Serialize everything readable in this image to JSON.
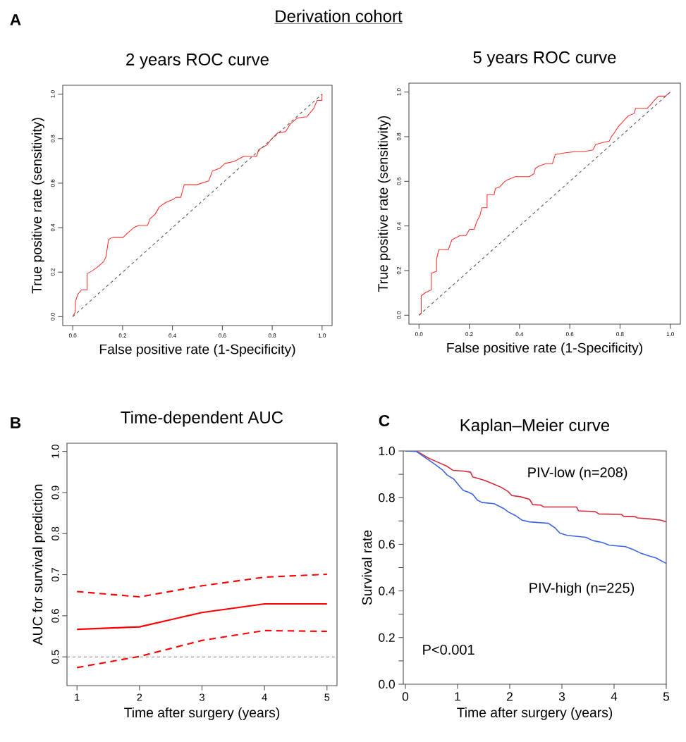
{
  "chart_data": [
    {
      "type": "line",
      "title": "2 years ROC curve",
      "xlabel": "False positive rate (1-Specificity)",
      "ylabel": "True positive rate (sensitivity)",
      "annotations": [
        "A",
        "Derivation cohort"
      ],
      "xlim": [
        -0.04,
        1.04
      ],
      "ylim": [
        -0.04,
        1.04
      ],
      "xticks": [
        {
          "value": 0,
          "label": "0.0"
        },
        {
          "value": 0.2,
          "label": "0.2"
        },
        {
          "value": 0.4,
          "label": "0.4"
        },
        {
          "value": 0.6,
          "label": "0.6"
        },
        {
          "value": 0.8,
          "label": "0.8"
        },
        {
          "value": 1,
          "label": "1.0"
        }
      ],
      "yticks": [
        {
          "value": 0,
          "label": "0.0"
        },
        {
          "value": 0.2,
          "label": "0.2"
        },
        {
          "value": 0.4,
          "label": "0.4"
        },
        {
          "value": 0.6,
          "label": "0.6"
        },
        {
          "value": 0.8,
          "label": "0.8"
        },
        {
          "value": 1,
          "label": "1.0"
        }
      ],
      "series": [
        {
          "color": "#ff3030",
          "x": [
            0,
            0.01,
            0.011,
            0.02,
            0.035,
            0.058,
            0.058,
            0.077,
            0.096,
            0.124,
            0.133,
            0.144,
            0.161,
            0.203,
            0.217,
            0.245,
            0.264,
            0.3,
            0.31,
            0.33,
            0.348,
            0.376,
            0.4,
            0.414,
            0.433,
            0.447,
            0.498,
            0.545,
            0.56,
            0.59,
            0.61,
            0.648,
            0.685,
            0.737,
            0.746,
            0.779,
            0.793,
            0.821,
            0.854,
            0.873,
            0.901,
            0.938,
            0.966,
            0.98,
            0.999,
            1
          ],
          "values": [
            0,
            0.02,
            0.068,
            0.1,
            0.12,
            0.12,
            0.194,
            0.205,
            0.22,
            0.247,
            0.268,
            0.347,
            0.357,
            0.357,
            0.373,
            0.4,
            0.41,
            0.41,
            0.44,
            0.46,
            0.494,
            0.515,
            0.525,
            0.536,
            0.536,
            0.593,
            0.593,
            0.61,
            0.654,
            0.667,
            0.688,
            0.698,
            0.72,
            0.72,
            0.751,
            0.772,
            0.793,
            0.825,
            0.832,
            0.867,
            0.893,
            0.898,
            0.935,
            0.972,
            0.972,
            1
          ]
        },
        {
          "color": "#555555",
          "line_style": "dashed",
          "x": [
            0,
            1
          ],
          "values": [
            0,
            1
          ]
        }
      ]
    },
    {
      "type": "line",
      "title": "5 years ROC curve",
      "xlabel": "False positive rate (1-Specificity)",
      "ylabel": "True positive rate (sensitivity)",
      "xlim": [
        -0.04,
        1.04
      ],
      "ylim": [
        -0.04,
        1.04
      ],
      "xticks": [
        {
          "value": 0,
          "label": "0.0"
        },
        {
          "value": 0.2,
          "label": "0.2"
        },
        {
          "value": 0.4,
          "label": "0.4"
        },
        {
          "value": 0.6,
          "label": "0.6"
        },
        {
          "value": 0.8,
          "label": "0.8"
        },
        {
          "value": 1,
          "label": "1.0"
        }
      ],
      "yticks": [
        {
          "value": 0,
          "label": "0.0"
        },
        {
          "value": 0.2,
          "label": "0.2"
        },
        {
          "value": 0.4,
          "label": "0.4"
        },
        {
          "value": 0.6,
          "label": "0.6"
        },
        {
          "value": 0.8,
          "label": "0.8"
        },
        {
          "value": 1,
          "label": "1.0"
        }
      ],
      "series": [
        {
          "color": "#ff3030",
          "x": [
            0,
            0.009,
            0.009,
            0.028,
            0.049,
            0.049,
            0.07,
            0.07,
            0.079,
            0.117,
            0.131,
            0.15,
            0.164,
            0.187,
            0.201,
            0.22,
            0.229,
            0.243,
            0.25,
            0.271,
            0.271,
            0.299,
            0.304,
            0.322,
            0.341,
            0.355,
            0.383,
            0.439,
            0.458,
            0.463,
            0.477,
            0.505,
            0.531,
            0.542,
            0.584,
            0.621,
            0.654,
            0.692,
            0.703,
            0.729,
            0.757,
            0.766,
            0.776,
            0.792,
            0.811,
            0.832,
            0.855,
            0.862,
            0.908,
            0.925,
            0.935,
            0.953,
            0.981,
            1
          ],
          "values": [
            0,
            0.008,
            0.087,
            0.103,
            0.113,
            0.188,
            0.197,
            0.252,
            0.294,
            0.294,
            0.338,
            0.349,
            0.357,
            0.357,
            0.385,
            0.385,
            0.417,
            0.448,
            0.482,
            0.482,
            0.54,
            0.54,
            0.568,
            0.576,
            0.599,
            0.608,
            0.621,
            0.621,
            0.634,
            0.658,
            0.668,
            0.679,
            0.679,
            0.72,
            0.728,
            0.733,
            0.733,
            0.741,
            0.765,
            0.773,
            0.78,
            0.801,
            0.815,
            0.844,
            0.867,
            0.893,
            0.903,
            0.927,
            0.927,
            0.947,
            0.961,
            0.982,
            0.982,
            1
          ]
        },
        {
          "color": "#555555",
          "line_style": "dashed",
          "x": [
            0,
            1
          ],
          "values": [
            0,
            1
          ]
        }
      ]
    },
    {
      "type": "line",
      "title": "Time-dependent AUC",
      "xlabel": "Time after surgery (years)",
      "ylabel": "AUC for survival prediction",
      "annotations": [
        "B"
      ],
      "xlim": [
        0.84,
        5.16
      ],
      "ylim": [
        0.43,
        1.02
      ],
      "xticks": [
        1,
        2,
        3,
        4,
        5
      ],
      "yticks": [
        0.5,
        0.6,
        0.7,
        0.8,
        0.9,
        {
          "value": 1,
          "label": "1.0"
        }
      ],
      "ref_lines": [
        {
          "axis": "y",
          "value": 0.5,
          "color": "#555555",
          "line_style": "dashed"
        }
      ],
      "series": [
        {
          "color": "#ff0000",
          "x": [
            1,
            2,
            3,
            4,
            5
          ],
          "values": [
            0.567,
            0.573,
            0.608,
            0.629,
            0.629
          ]
        },
        {
          "color": "#ff0000",
          "line_style": "dashed",
          "x": [
            1,
            2,
            3,
            4,
            5
          ],
          "values": [
            0.659,
            0.646,
            0.673,
            0.694,
            0.701
          ]
        },
        {
          "color": "#ff0000",
          "line_style": "dashed",
          "x": [
            1,
            2,
            3,
            4,
            5
          ],
          "values": [
            0.474,
            0.501,
            0.54,
            0.564,
            0.562
          ]
        }
      ]
    },
    {
      "type": "line",
      "title": "Kaplan–Meier curve",
      "xlabel": "Time after surgery (years)",
      "ylabel": "Survival rate",
      "annotations": [
        "C",
        "P<0.001"
      ],
      "xlim": [
        -0.04,
        5
      ],
      "ylim": [
        0,
        1
      ],
      "xticks": [
        0,
        1,
        2,
        3,
        4,
        5
      ],
      "yticks": [
        {
          "value": 0,
          "label": "0.0"
        },
        {
          "value": 0.1,
          "label": null
        },
        {
          "value": 0.2,
          "label": "0.2"
        },
        {
          "value": 0.3,
          "label": null
        },
        {
          "value": 0.4,
          "label": "0.4"
        },
        {
          "value": 0.5,
          "label": null
        },
        {
          "value": 0.6,
          "label": "0.6"
        },
        {
          "value": 0.7,
          "label": null
        },
        {
          "value": 0.8,
          "label": "0.8"
        },
        {
          "value": 0.9,
          "label": null
        },
        {
          "value": 1,
          "label": "1.0"
        }
      ],
      "series": [
        {
          "name": "PIV-low (n=208)",
          "color": "#d42a3c",
          "x": [
            0,
            0.21,
            0.44,
            0.62,
            0.8,
            0.91,
            1.11,
            1.25,
            1.29,
            1.52,
            1.7,
            1.84,
            1.97,
            2.04,
            2.2,
            2.38,
            2.44,
            2.6,
            2.65,
            3.28,
            3.32,
            3.64,
            3.71,
            4.14,
            4.18,
            4.41,
            4.45,
            4.72,
            4.9,
            5
          ],
          "values": [
            1,
            1,
            0.97,
            0.952,
            0.934,
            0.917,
            0.914,
            0.909,
            0.889,
            0.874,
            0.857,
            0.844,
            0.826,
            0.809,
            0.804,
            0.793,
            0.77,
            0.768,
            0.76,
            0.76,
            0.743,
            0.74,
            0.73,
            0.728,
            0.72,
            0.718,
            0.713,
            0.708,
            0.703,
            0.696
          ]
        },
        {
          "name": "PIV-high (n=225)",
          "color": "#3a66e4",
          "x": [
            0,
            0.21,
            0.39,
            0.57,
            0.71,
            0.8,
            0.93,
            1.02,
            1.11,
            1.2,
            1.29,
            1.38,
            1.47,
            1.7,
            1.88,
            1.97,
            2.11,
            2.24,
            2.38,
            2.74,
            2.87,
            2.96,
            3.1,
            3.46,
            3.59,
            3.77,
            3.91,
            4.22,
            4.36,
            4.5,
            4.63,
            4.81,
            5
          ],
          "values": [
            1,
            0.998,
            0.97,
            0.942,
            0.919,
            0.897,
            0.879,
            0.854,
            0.831,
            0.824,
            0.814,
            0.789,
            0.779,
            0.774,
            0.754,
            0.739,
            0.723,
            0.703,
            0.696,
            0.69,
            0.67,
            0.648,
            0.638,
            0.63,
            0.616,
            0.608,
            0.596,
            0.59,
            0.578,
            0.563,
            0.553,
            0.541,
            0.518
          ]
        }
      ]
    }
  ]
}
